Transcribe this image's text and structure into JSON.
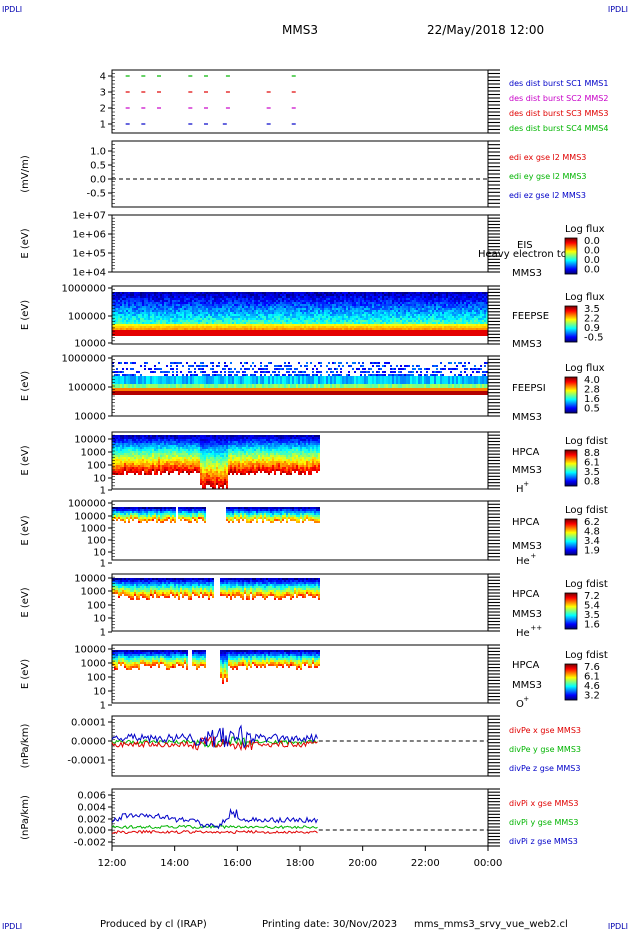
{
  "header": {
    "corner_tl": "IPDLI",
    "corner_tr": "IPDLI",
    "corner_bl": "IPDLI",
    "corner_br": "IPDLI",
    "spacecraft": "MMS3",
    "datetime": "22/May/2018 12:00"
  },
  "footer": {
    "produced": "Produced by cl (IRAP)",
    "printing": "Printing date: 30/Nov/2023",
    "script": "mms_mms3_srvy_vue_web2.cl"
  },
  "colors": {
    "red": "#e00000",
    "green": "#00b400",
    "blue": "#0000c8",
    "magenta": "#c800c8"
  },
  "chart_data": [
    {
      "type": "scatter",
      "id": "burst",
      "yticks": [
        "4",
        "3",
        "2",
        "1"
      ],
      "series": [
        {
          "name": "des dist burst SC1 MMS1",
          "color": "blue",
          "level": 1,
          "x": [
            12.5,
            13.0,
            14.5,
            15.0,
            15.6,
            17.0,
            17.8
          ]
        },
        {
          "name": "des dist burst SC2 MMS2",
          "color": "magenta",
          "level": 2,
          "x": [
            12.5,
            13.0,
            13.5,
            14.5,
            15.0,
            15.7,
            17.0,
            17.8
          ]
        },
        {
          "name": "des dist burst SC3 MMS3",
          "color": "red",
          "level": 3,
          "x": [
            12.5,
            13.0,
            13.5,
            14.5,
            15.0,
            15.7,
            17.0,
            17.8
          ]
        },
        {
          "name": "des dist burst SC4 MMS4",
          "color": "green",
          "level": 4,
          "x": [
            12.5,
            13.0,
            13.5,
            14.5,
            15.0,
            15.7,
            17.8
          ]
        }
      ]
    },
    {
      "type": "line",
      "id": "edi",
      "ylabel": "(mV/m)",
      "yticks": [
        "1.0",
        "0.5",
        "0.0",
        "-0.5"
      ],
      "series": [
        {
          "name": "edi ex gse l2 MMS3",
          "color": "red"
        },
        {
          "name": "edi ey gse l2 MMS3",
          "color": "green"
        },
        {
          "name": "edi ez gse l2 MMS3",
          "color": "blue"
        }
      ]
    },
    {
      "type": "heatmap",
      "id": "eis",
      "ylabel": "E (eV)",
      "yticks": [
        "1e+07",
        "1e+06",
        "1e+05",
        "1e+04"
      ],
      "instrument": "EIS",
      "overlay": "Heavy electron to",
      "sc": "MMS3",
      "cbar_title": "Log flux",
      "cbar_ticks": [
        "0.0",
        "0.0",
        "0.0",
        "0.0"
      ]
    },
    {
      "type": "heatmap",
      "id": "feepse",
      "ylabel": "E (eV)",
      "yticks": [
        "1000000",
        "100000",
        "10000"
      ],
      "instrument": "FEEPSE",
      "sc": "MMS3",
      "cbar_title": "Log flux",
      "cbar_ticks": [
        "3.5",
        "2.2",
        "0.9",
        "-0.5"
      ]
    },
    {
      "type": "heatmap",
      "id": "feepsi",
      "ylabel": "E (eV)",
      "yticks": [
        "1000000",
        "100000",
        "10000"
      ],
      "instrument": "FEEPSI",
      "sc": "MMS3",
      "cbar_title": "Log flux",
      "cbar_ticks": [
        "4.0",
        "2.8",
        "1.6",
        "0.5"
      ]
    },
    {
      "type": "heatmap",
      "id": "hpca-h",
      "ylabel": "E (eV)",
      "yticks": [
        "10000",
        "1000",
        "100",
        "10",
        "1"
      ],
      "instrument": "HPCA",
      "sc": "MMS3",
      "species": "H",
      "charge": "+",
      "cbar_title": "Log fdist",
      "cbar_ticks": [
        "8.8",
        "6.1",
        "3.5",
        "0.8"
      ]
    },
    {
      "type": "heatmap",
      "id": "hpca-he",
      "ylabel": "E (eV)",
      "yticks": [
        "100000",
        "10000",
        "1000",
        "100",
        "10",
        "1"
      ],
      "instrument": "HPCA",
      "sc": "MMS3",
      "species": "He",
      "charge": "+",
      "cbar_title": "Log fdist",
      "cbar_ticks": [
        "6.2",
        "4.8",
        "3.4",
        "1.9"
      ]
    },
    {
      "type": "heatmap",
      "id": "hpca-hepp",
      "ylabel": "E (eV)",
      "yticks": [
        "10000",
        "1000",
        "100",
        "10",
        "1"
      ],
      "instrument": "HPCA",
      "sc": "MMS3",
      "species": "He",
      "charge": "++",
      "cbar_title": "Log fdist",
      "cbar_ticks": [
        "7.2",
        "5.4",
        "3.5",
        "1.6"
      ]
    },
    {
      "type": "heatmap",
      "id": "hpca-o",
      "ylabel": "E (eV)",
      "yticks": [
        "10000",
        "1000",
        "100",
        "10",
        "1"
      ],
      "instrument": "HPCA",
      "sc": "MMS3",
      "species": "O",
      "charge": "+",
      "cbar_title": "Log fdist",
      "cbar_ticks": [
        "7.6",
        "6.1",
        "4.6",
        "3.2"
      ]
    },
    {
      "type": "line",
      "id": "divpe",
      "ylabel": "(nPa/km)",
      "yticks": [
        "0.0001",
        "0.0000",
        "-0.0001"
      ],
      "ylim": [
        -0.00017,
        0.00014
      ],
      "series": [
        {
          "name": "divPe x gse MMS3",
          "color": "red"
        },
        {
          "name": "divPe y gse MMS3",
          "color": "green"
        },
        {
          "name": "divPe z gse MMS3",
          "color": "blue"
        }
      ]
    },
    {
      "type": "line",
      "id": "divpi",
      "ylabel": "(nPa/km)",
      "yticks": [
        "0.006",
        "0.004",
        "0.002",
        "0.000",
        "-0.002"
      ],
      "ylim": [
        -0.0027,
        0.0073
      ],
      "series": [
        {
          "name": "divPi x gse MMS3",
          "color": "red"
        },
        {
          "name": "divPi y gse MMS3",
          "color": "green"
        },
        {
          "name": "divPi z gse MMS3",
          "color": "blue"
        }
      ]
    }
  ],
  "xaxis": {
    "xlim": [
      12,
      24
    ],
    "data_end": 18.6,
    "ticks": [
      "12:00",
      "14:00",
      "16:00",
      "18:00",
      "20:00",
      "22:00",
      "00:00"
    ]
  }
}
